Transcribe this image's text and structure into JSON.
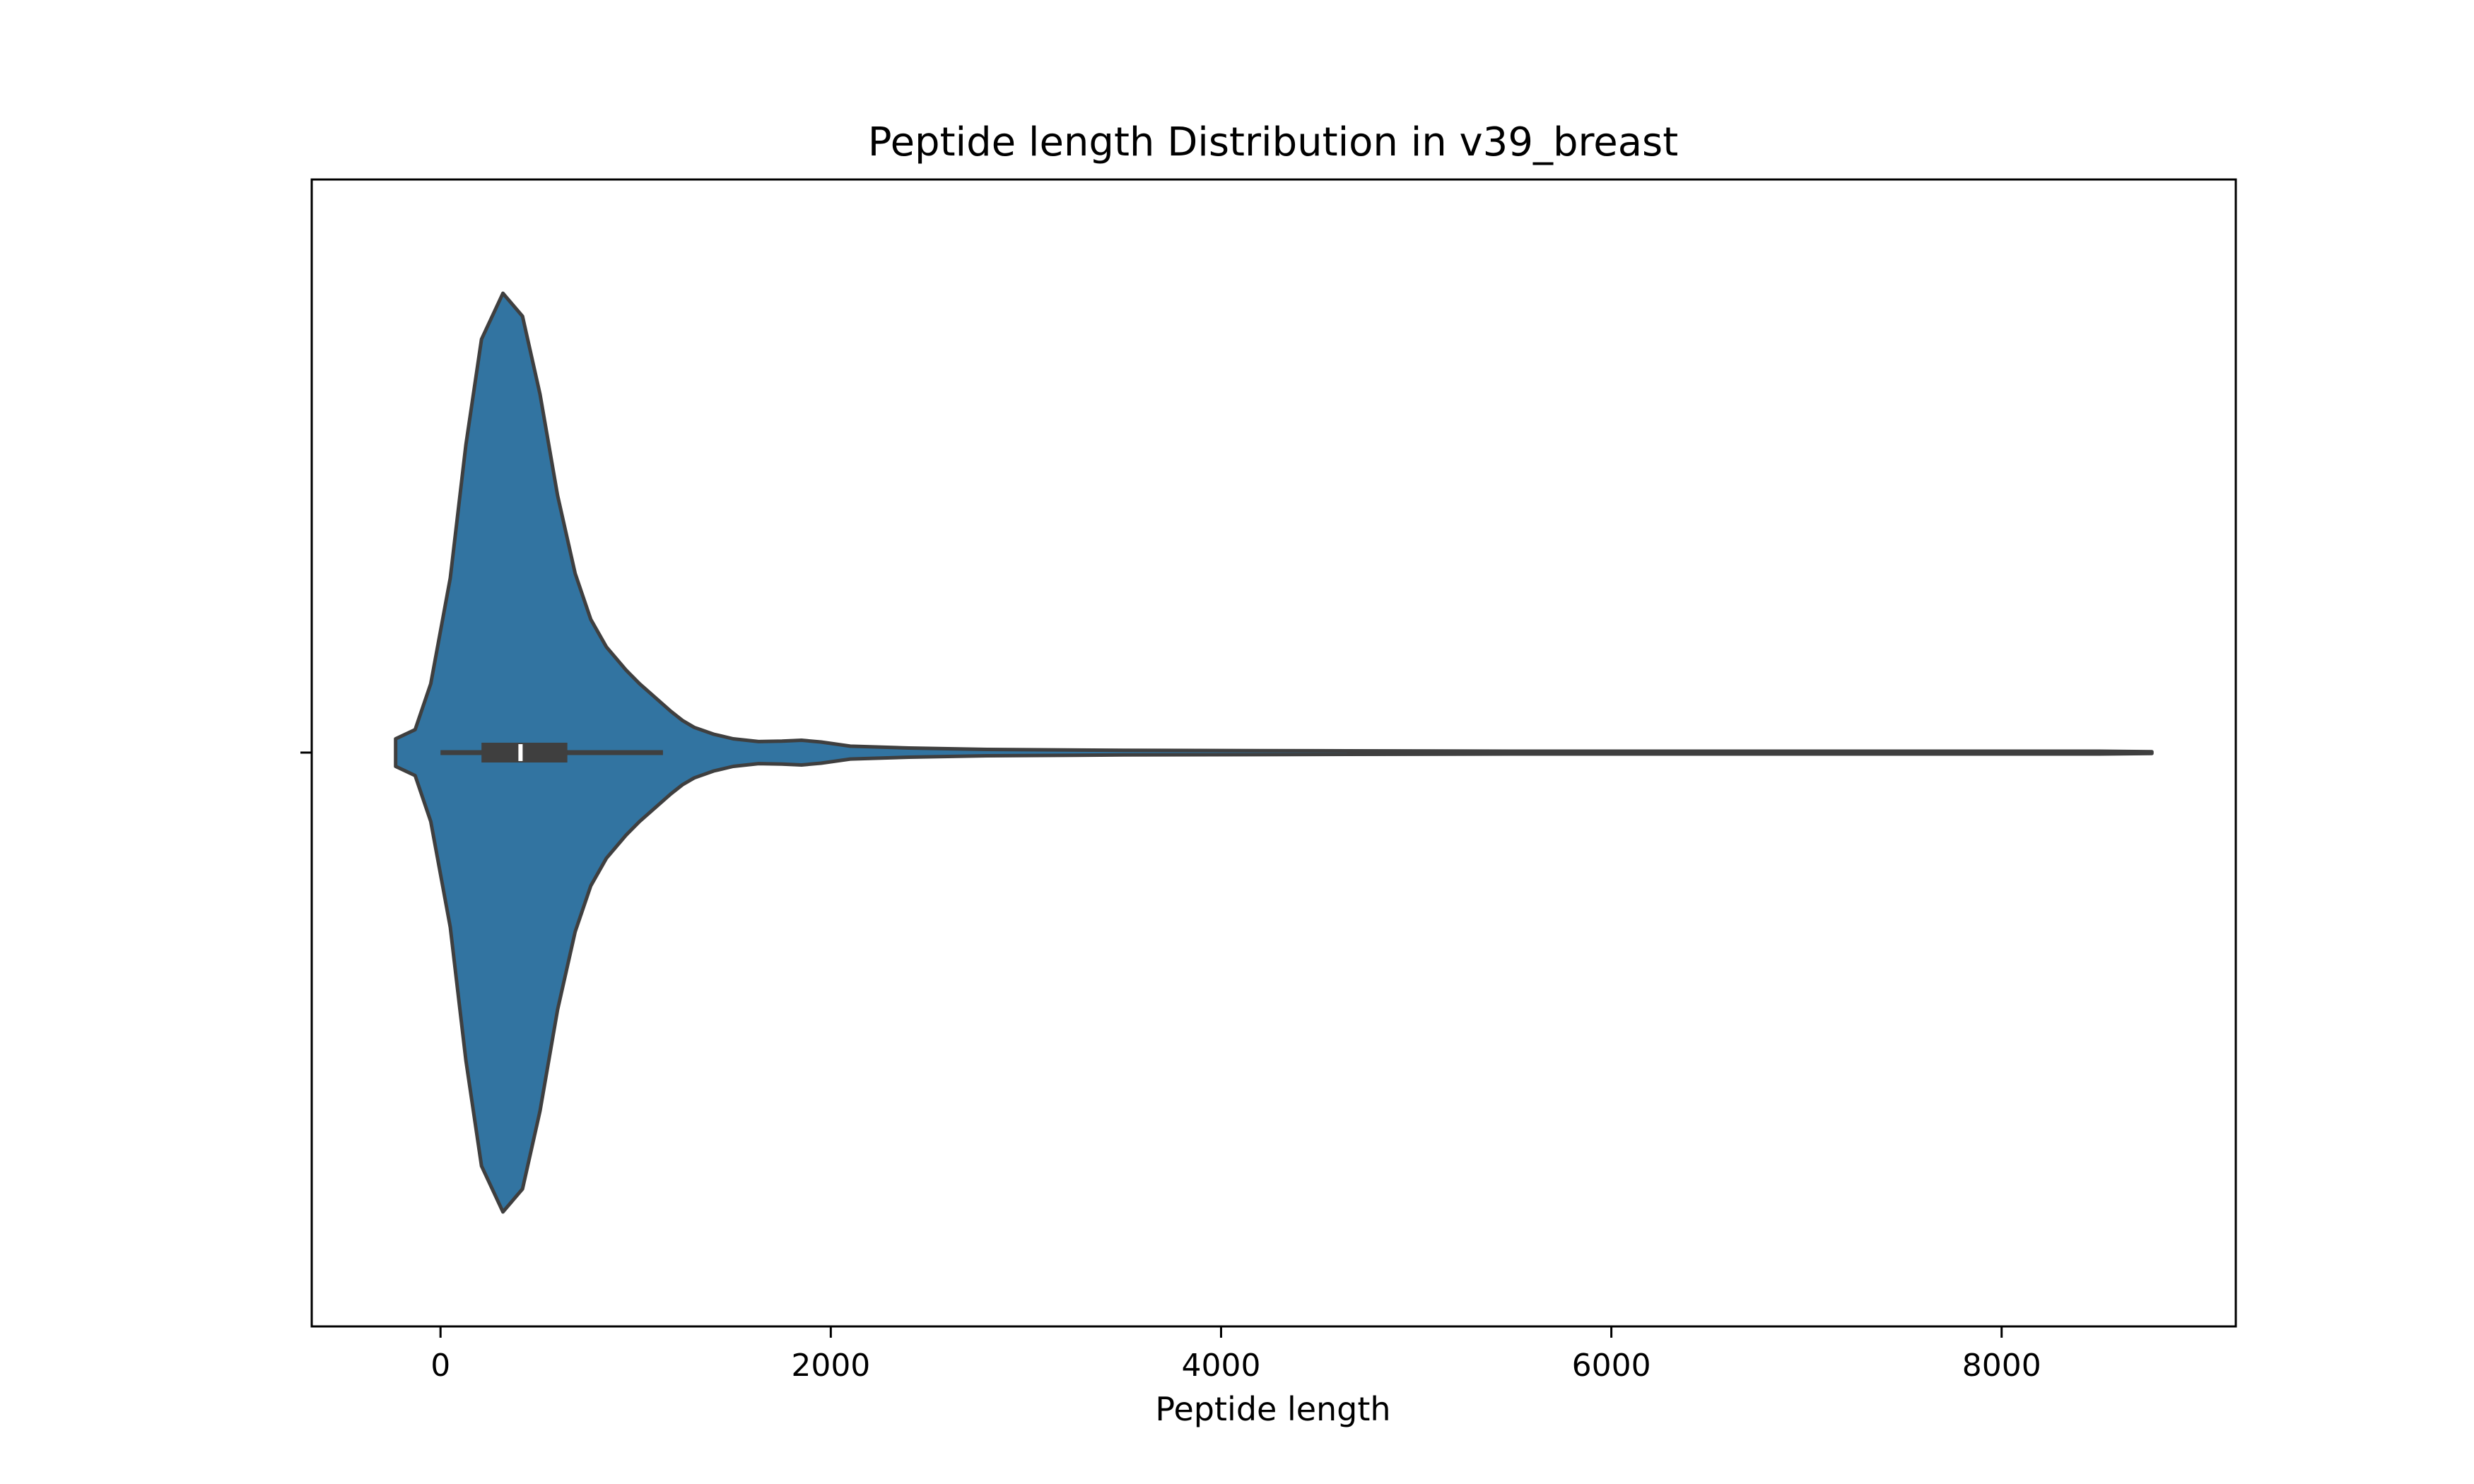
{
  "chart_data": {
    "type": "violin",
    "title": "Peptide length Distribution in v39_breast",
    "xlabel": "Peptide length",
    "ylabel": "",
    "xlim": [
      -660,
      9200
    ],
    "xticks": [
      0,
      2000,
      4000,
      6000,
      8000
    ],
    "xtick_labels": [
      "0",
      "2000",
      "4000",
      "6000",
      "8000"
    ],
    "grid": false,
    "legend": null,
    "orientation": "horizontal",
    "density_profile": {
      "note": "half-width of violin as fraction of the maximum half-width, by peptide length",
      "x": [
        -230,
        -130,
        -50,
        50,
        130,
        210,
        320,
        420,
        510,
        600,
        690,
        770,
        850,
        950,
        1020,
        1100,
        1180,
        1240,
        1300,
        1400,
        1500,
        1630,
        1750,
        1850,
        1950,
        2100,
        2400,
        2800,
        3500,
        4500,
        5500,
        6500,
        7500,
        8500,
        8770
      ],
      "values": [
        0.03,
        0.05,
        0.15,
        0.38,
        0.67,
        0.9,
        1.0,
        0.95,
        0.78,
        0.56,
        0.39,
        0.29,
        0.23,
        0.18,
        0.15,
        0.12,
        0.09,
        0.07,
        0.055,
        0.04,
        0.03,
        0.024,
        0.025,
        0.027,
        0.023,
        0.014,
        0.01,
        0.007,
        0.005,
        0.004,
        0.003,
        0.003,
        0.003,
        0.003,
        0.002
      ]
    },
    "box": {
      "q1": 210,
      "median": 410,
      "q3": 650,
      "whisker_low": 0,
      "whisker_high": 1140
    },
    "colors": {
      "fill": "#3274a1",
      "edge": "#3f3f3f",
      "box": "#3f3f3f",
      "median": "#ffffff",
      "axis": "#000000"
    }
  }
}
